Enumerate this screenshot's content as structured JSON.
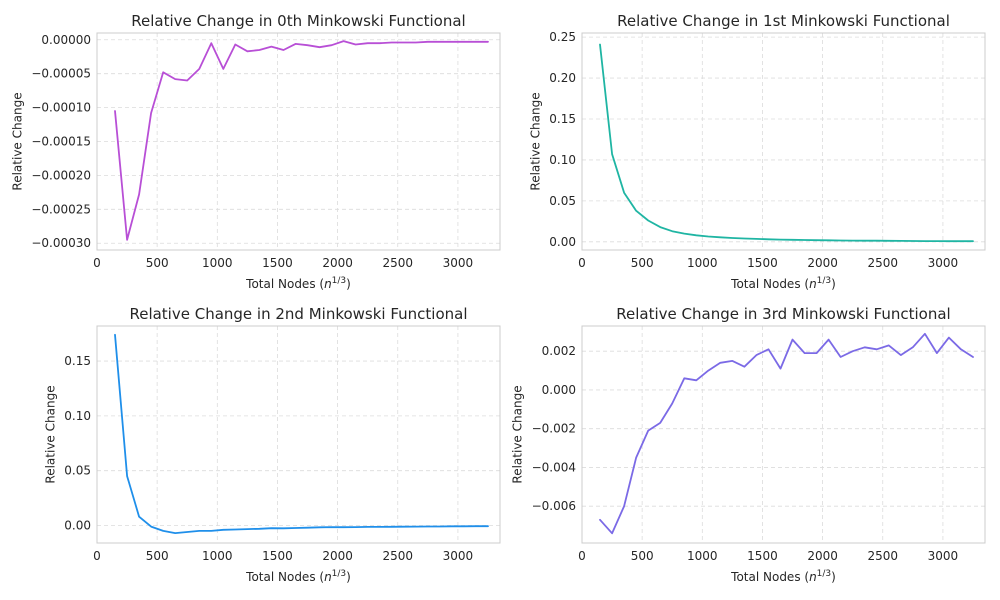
{
  "chart_data": [
    {
      "type": "line",
      "title": "Relative Change in 0th Minkowski Functional",
      "xlabel": "Total Nodes (n^{1/3})",
      "ylabel": "Relative Change",
      "xlim": [
        0,
        3350
      ],
      "ylim": [
        -0.00031,
        1e-05
      ],
      "xticks": [
        0,
        500,
        1000,
        1500,
        2000,
        2500,
        3000
      ],
      "xtick_labels": [
        "0",
        "500",
        "1000",
        "1500",
        "2000",
        "2500",
        "3000"
      ],
      "yticks": [
        -0.0003,
        -0.00025,
        -0.0002,
        -0.00015,
        -0.0001,
        -5e-05,
        0
      ],
      "ytick_labels": [
        "−0.00030",
        "−0.00025",
        "−0.00020",
        "−0.00015",
        "−0.00010",
        "−0.00005",
        "0.00000"
      ],
      "grid": true,
      "color": "#b84fd6",
      "x": [
        150,
        250,
        350,
        450,
        550,
        650,
        750,
        850,
        950,
        1050,
        1150,
        1250,
        1350,
        1450,
        1550,
        1650,
        1750,
        1850,
        1950,
        2050,
        2150,
        2250,
        2350,
        2450,
        2550,
        2650,
        2750,
        2850,
        2950,
        3050,
        3150,
        3250
      ],
      "y": [
        -0.000105,
        -0.000295,
        -0.000228,
        -0.000108,
        -4.8e-05,
        -5.8e-05,
        -6e-05,
        -4.3e-05,
        -5e-06,
        -4.3e-05,
        -7e-06,
        -1.7e-05,
        -1.5e-05,
        -1e-05,
        -1.5e-05,
        -6e-06,
        -8e-06,
        -1.1e-05,
        -8e-06,
        -2e-06,
        -7e-06,
        -5e-06,
        -5e-06,
        -4e-06,
        -4e-06,
        -4e-06,
        -3e-06,
        -3e-06,
        -3e-06,
        -3e-06,
        -3e-06,
        -3e-06
      ]
    },
    {
      "type": "line",
      "title": "Relative Change in 1st Minkowski Functional",
      "xlabel": "Total Nodes (n^{1/3})",
      "ylabel": "Relative Change",
      "xlim": [
        0,
        3350
      ],
      "ylim": [
        -0.01,
        0.255
      ],
      "xticks": [
        0,
        500,
        1000,
        1500,
        2000,
        2500,
        3000
      ],
      "xtick_labels": [
        "0",
        "500",
        "1000",
        "1500",
        "2000",
        "2500",
        "3000"
      ],
      "yticks": [
        0,
        0.05,
        0.1,
        0.15,
        0.2,
        0.25
      ],
      "ytick_labels": [
        "0.00",
        "0.05",
        "0.10",
        "0.15",
        "0.20",
        "0.25"
      ],
      "grid": true,
      "color": "#1fb5a3",
      "x": [
        150,
        250,
        350,
        450,
        550,
        650,
        750,
        850,
        950,
        1050,
        1150,
        1250,
        1350,
        1450,
        1550,
        1650,
        1750,
        1850,
        1950,
        2050,
        2150,
        2250,
        2350,
        2450,
        2550,
        2650,
        2750,
        2850,
        2950,
        3050,
        3150,
        3250
      ],
      "y": [
        0.241,
        0.107,
        0.06,
        0.038,
        0.026,
        0.018,
        0.013,
        0.01,
        0.008,
        0.0065,
        0.0055,
        0.0047,
        0.004,
        0.0035,
        0.0031,
        0.0027,
        0.0024,
        0.0022,
        0.002,
        0.0018,
        0.0016,
        0.0015,
        0.0014,
        0.0013,
        0.0012,
        0.0011,
        0.001,
        0.0009,
        0.0009,
        0.0008,
        0.0008,
        0.0007
      ]
    },
    {
      "type": "line",
      "title": "Relative Change in 2nd Minkowski Functional",
      "xlabel": "Total Nodes (n^{1/3})",
      "ylabel": "Relative Change",
      "xlim": [
        0,
        3350
      ],
      "ylim": [
        -0.016,
        0.182
      ],
      "xticks": [
        0,
        500,
        1000,
        1500,
        2000,
        2500,
        3000
      ],
      "xtick_labels": [
        "0",
        "500",
        "1000",
        "1500",
        "2000",
        "2500",
        "3000"
      ],
      "yticks": [
        0,
        0.05,
        0.1,
        0.15
      ],
      "ytick_labels": [
        "0.00",
        "0.05",
        "0.10",
        "0.15"
      ],
      "grid": true,
      "color": "#1f8fea",
      "x": [
        150,
        250,
        350,
        450,
        550,
        650,
        750,
        850,
        950,
        1050,
        1150,
        1250,
        1350,
        1450,
        1550,
        1650,
        1750,
        1850,
        1950,
        2050,
        2150,
        2250,
        2350,
        2450,
        2550,
        2650,
        2750,
        2850,
        2950,
        3050,
        3150,
        3250
      ],
      "y": [
        0.174,
        0.045,
        0.008,
        -0.001,
        -0.005,
        -0.007,
        -0.006,
        -0.005,
        -0.005,
        -0.004,
        -0.0037,
        -0.0033,
        -0.003,
        -0.0025,
        -0.0026,
        -0.0023,
        -0.002,
        -0.0017,
        -0.0015,
        -0.0016,
        -0.0015,
        -0.0013,
        -0.0013,
        -0.0012,
        -0.0011,
        -0.001,
        -0.0009,
        -0.0009,
        -0.0008,
        -0.0008,
        -0.0007,
        -0.0007
      ]
    },
    {
      "type": "line",
      "title": "Relative Change in 3rd Minkowski Functional",
      "xlabel": "Total Nodes (n^{1/3})",
      "ylabel": "Relative Change",
      "xlim": [
        0,
        3350
      ],
      "ylim": [
        -0.0079,
        0.0033
      ],
      "xticks": [
        0,
        500,
        1000,
        1500,
        2000,
        2500,
        3000
      ],
      "xtick_labels": [
        "0",
        "500",
        "1000",
        "1500",
        "2000",
        "2500",
        "3000"
      ],
      "yticks": [
        -0.006,
        -0.004,
        -0.002,
        0,
        0.002
      ],
      "ytick_labels": [
        "−0.006",
        "−0.004",
        "−0.002",
        "0.000",
        "0.002"
      ],
      "grid": true,
      "color": "#7b6ae6",
      "x": [
        150,
        250,
        350,
        450,
        550,
        650,
        750,
        850,
        950,
        1050,
        1150,
        1250,
        1350,
        1450,
        1550,
        1650,
        1750,
        1850,
        1950,
        2050,
        2150,
        2250,
        2350,
        2450,
        2550,
        2650,
        2750,
        2850,
        2950,
        3050,
        3150,
        3250
      ],
      "y": [
        -0.0067,
        -0.0074,
        -0.006,
        -0.0035,
        -0.0021,
        -0.0017,
        -0.0007,
        0.0006,
        0.0005,
        0.001,
        0.0014,
        0.0015,
        0.0012,
        0.0018,
        0.0021,
        0.0011,
        0.0026,
        0.0019,
        0.0019,
        0.0026,
        0.0017,
        0.002,
        0.0022,
        0.0021,
        0.0023,
        0.0018,
        0.0022,
        0.0029,
        0.0019,
        0.0027,
        0.0021,
        0.0017
      ]
    }
  ]
}
